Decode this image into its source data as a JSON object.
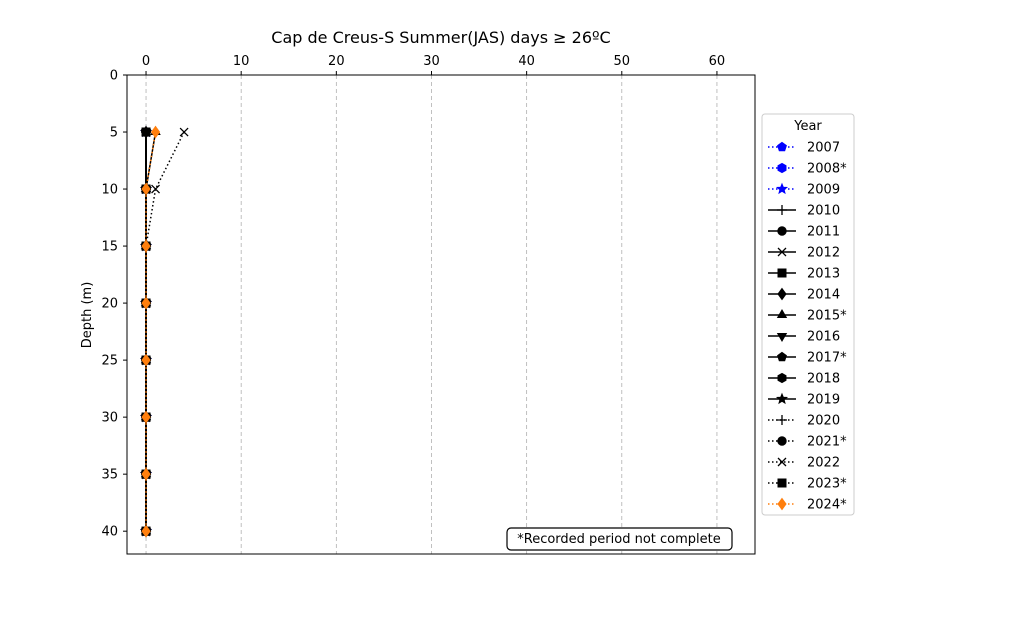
{
  "chart_data": {
    "type": "line",
    "title": "Cap de Creus-S Summer(JAS) days ≥ 26ºC",
    "xlabel": "",
    "ylabel": "Depth (m)",
    "xlim": [
      -2,
      64
    ],
    "ylim": [
      42,
      0
    ],
    "xticks": [
      0,
      10,
      20,
      30,
      40,
      50,
      60
    ],
    "yticks": [
      0,
      5,
      10,
      15,
      20,
      25,
      30,
      35,
      40
    ],
    "x_axis_position": "top",
    "y_inverted": true,
    "grid": "vertical dashed",
    "legend_title": "Year",
    "legend_position": "outside right",
    "annotation": "*Recorded period not complete",
    "depths": [
      5,
      10,
      15,
      20,
      25,
      30,
      35,
      40
    ],
    "series": [
      {
        "name": "2007",
        "color": "#0000ff",
        "linestyle": "dotted",
        "marker": "pentagon",
        "values": [
          0,
          0,
          0,
          0,
          0,
          0,
          0,
          0
        ]
      },
      {
        "name": "2008*",
        "color": "#0000ff",
        "linestyle": "dotted",
        "marker": "hexagon",
        "values": [
          0,
          0,
          0,
          0,
          0,
          0,
          0,
          0
        ]
      },
      {
        "name": "2009",
        "color": "#0000ff",
        "linestyle": "dotted",
        "marker": "star",
        "values": [
          0,
          0,
          0,
          0,
          0,
          0,
          0,
          0
        ]
      },
      {
        "name": "2010",
        "color": "#000000",
        "linestyle": "solid",
        "marker": "plus",
        "values": [
          0,
          0,
          0,
          0,
          0,
          0,
          0,
          0
        ]
      },
      {
        "name": "2011",
        "color": "#000000",
        "linestyle": "solid",
        "marker": "circle",
        "values": [
          0,
          0,
          0,
          0,
          0,
          0,
          0,
          0
        ]
      },
      {
        "name": "2012",
        "color": "#000000",
        "linestyle": "solid",
        "marker": "x",
        "values": [
          0,
          0,
          0,
          0,
          0,
          0,
          0,
          0
        ]
      },
      {
        "name": "2013",
        "color": "#000000",
        "linestyle": "solid",
        "marker": "square",
        "values": [
          0,
          0,
          0,
          0,
          0,
          0,
          0,
          0
        ]
      },
      {
        "name": "2014",
        "color": "#000000",
        "linestyle": "solid",
        "marker": "diamond",
        "values": [
          0,
          0,
          0,
          0,
          0,
          0,
          0,
          0
        ]
      },
      {
        "name": "2015*",
        "color": "#000000",
        "linestyle": "solid",
        "marker": "triangle-up",
        "values": [
          1,
          0,
          0,
          0,
          0,
          0,
          0,
          0
        ]
      },
      {
        "name": "2016",
        "color": "#000000",
        "linestyle": "solid",
        "marker": "triangle-down",
        "values": [
          0,
          0,
          0,
          0,
          0,
          0,
          0,
          0
        ]
      },
      {
        "name": "2017*",
        "color": "#000000",
        "linestyle": "solid",
        "marker": "pentagon",
        "values": [
          0,
          0,
          0,
          0,
          0,
          0,
          0,
          0
        ]
      },
      {
        "name": "2018",
        "color": "#000000",
        "linestyle": "solid",
        "marker": "hexagon",
        "values": [
          0,
          0,
          0,
          0,
          0,
          0,
          0,
          0
        ]
      },
      {
        "name": "2019",
        "color": "#000000",
        "linestyle": "solid",
        "marker": "star",
        "values": [
          0,
          0,
          0,
          0,
          0,
          0,
          0,
          0
        ]
      },
      {
        "name": "2020",
        "color": "#000000",
        "linestyle": "dotted",
        "marker": "plus",
        "values": [
          0,
          0,
          0,
          0,
          0,
          0,
          0,
          0
        ]
      },
      {
        "name": "2021*",
        "color": "#000000",
        "linestyle": "dotted",
        "marker": "circle",
        "values": [
          0,
          0,
          0,
          0,
          0,
          0,
          0,
          0
        ]
      },
      {
        "name": "2022",
        "color": "#000000",
        "linestyle": "dotted",
        "marker": "x",
        "values": [
          4,
          1,
          0,
          0,
          0,
          0,
          0,
          0
        ]
      },
      {
        "name": "2023*",
        "color": "#000000",
        "linestyle": "dotted",
        "marker": "square",
        "values": [
          0,
          0,
          0,
          0,
          0,
          0,
          0,
          0
        ]
      },
      {
        "name": "2024*",
        "color": "#ff7f0e",
        "linestyle": "dotted",
        "marker": "diamond",
        "values": [
          1,
          0,
          0,
          0,
          0,
          0,
          0,
          0
        ]
      }
    ]
  }
}
